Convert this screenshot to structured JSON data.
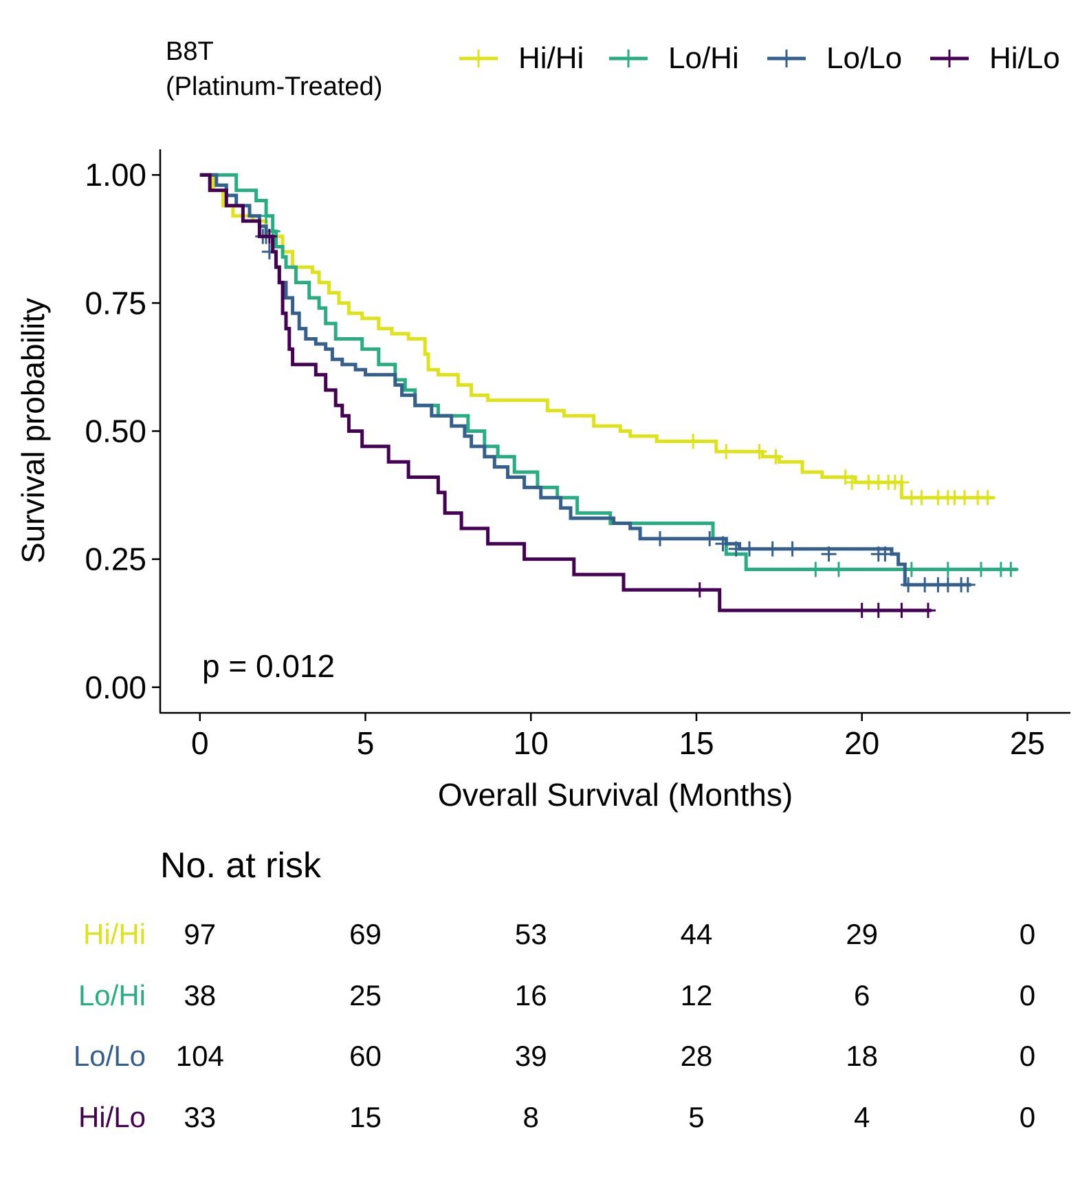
{
  "chart_data": {
    "type": "line",
    "legend": {
      "title_lines": [
        "B8T",
        "(Platinum-Treated)"
      ],
      "placement": "top"
    },
    "xlabel": "Overall Survival (Months)",
    "ylabel": "Survival probability",
    "xlim": [
      -1.2,
      26.3
    ],
    "ylim": [
      -0.05,
      1.05
    ],
    "x_ticks": [
      0,
      5,
      10,
      15,
      20,
      25
    ],
    "y_ticks": [
      0,
      0.25,
      0.5,
      0.75,
      1.0
    ],
    "x_tick_labels": [
      "0",
      "5",
      "10",
      "15",
      "20",
      "25"
    ],
    "y_tick_labels": [
      "0.00",
      "0.25",
      "0.50",
      "0.75",
      "1.00"
    ],
    "annotation": "p = 0.012",
    "annotation_pos": [
      0,
      0.04
    ],
    "series": [
      {
        "name": "Hi/Hi",
        "color": "#dde318",
        "steps": [
          [
            0,
            1.0
          ],
          [
            0.4,
            0.97
          ],
          [
            0.7,
            0.94
          ],
          [
            1.0,
            0.92
          ],
          [
            1.6,
            0.91
          ],
          [
            2.0,
            0.88
          ],
          [
            2.5,
            0.85
          ],
          [
            2.8,
            0.82
          ],
          [
            3.4,
            0.81
          ],
          [
            3.6,
            0.79
          ],
          [
            3.9,
            0.77
          ],
          [
            4.2,
            0.75
          ],
          [
            4.5,
            0.73
          ],
          [
            4.9,
            0.72
          ],
          [
            5.4,
            0.7
          ],
          [
            5.8,
            0.69
          ],
          [
            6.3,
            0.68
          ],
          [
            6.8,
            0.65
          ],
          [
            6.9,
            0.62
          ],
          [
            7.2,
            0.61
          ],
          [
            7.8,
            0.59
          ],
          [
            8.2,
            0.57
          ],
          [
            8.7,
            0.56
          ],
          [
            10.5,
            0.54
          ],
          [
            11.0,
            0.53
          ],
          [
            11.9,
            0.51
          ],
          [
            12.7,
            0.5
          ],
          [
            13.0,
            0.49
          ],
          [
            13.8,
            0.48
          ],
          [
            15.6,
            0.46
          ],
          [
            17.0,
            0.45
          ],
          [
            17.5,
            0.44
          ],
          [
            18.2,
            0.42
          ],
          [
            18.8,
            0.41
          ],
          [
            19.8,
            0.4
          ],
          [
            21.2,
            0.37
          ],
          [
            24.0,
            0.37
          ]
        ],
        "censors": [
          [
            14.9,
            0.48
          ],
          [
            15.9,
            0.46
          ],
          [
            16.9,
            0.46
          ],
          [
            17.4,
            0.45
          ],
          [
            19.5,
            0.41
          ],
          [
            19.7,
            0.4
          ],
          [
            20.2,
            0.4
          ],
          [
            20.5,
            0.4
          ],
          [
            20.8,
            0.4
          ],
          [
            21.0,
            0.4
          ],
          [
            21.2,
            0.4
          ],
          [
            21.5,
            0.37
          ],
          [
            21.8,
            0.37
          ],
          [
            22.3,
            0.37
          ],
          [
            22.6,
            0.37
          ],
          [
            22.8,
            0.37
          ],
          [
            23.1,
            0.37
          ],
          [
            23.5,
            0.37
          ],
          [
            23.8,
            0.37
          ]
        ]
      },
      {
        "name": "Lo/Hi",
        "color": "#27ad81",
        "steps": [
          [
            0,
            1.0
          ],
          [
            1.1,
            0.97
          ],
          [
            1.7,
            0.95
          ],
          [
            2.0,
            0.92
          ],
          [
            2.2,
            0.89
          ],
          [
            2.3,
            0.86
          ],
          [
            2.5,
            0.84
          ],
          [
            2.6,
            0.82
          ],
          [
            2.9,
            0.79
          ],
          [
            3.3,
            0.76
          ],
          [
            3.6,
            0.74
          ],
          [
            3.8,
            0.71
          ],
          [
            4.1,
            0.68
          ],
          [
            4.9,
            0.66
          ],
          [
            5.4,
            0.63
          ],
          [
            5.9,
            0.6
          ],
          [
            6.2,
            0.58
          ],
          [
            6.5,
            0.55
          ],
          [
            7.2,
            0.53
          ],
          [
            8.1,
            0.5
          ],
          [
            8.6,
            0.47
          ],
          [
            9.0,
            0.45
          ],
          [
            9.5,
            0.42
          ],
          [
            10.2,
            0.39
          ],
          [
            10.8,
            0.37
          ],
          [
            11.4,
            0.34
          ],
          [
            12.4,
            0.32
          ],
          [
            15.5,
            0.29
          ],
          [
            15.9,
            0.26
          ],
          [
            16.5,
            0.23
          ],
          [
            24.7,
            0.23
          ]
        ],
        "censors": [
          [
            2.0,
            0.92
          ],
          [
            2.2,
            0.89
          ],
          [
            18.6,
            0.23
          ],
          [
            19.3,
            0.23
          ],
          [
            21.5,
            0.23
          ],
          [
            22.6,
            0.23
          ],
          [
            23.6,
            0.23
          ],
          [
            24.2,
            0.23
          ],
          [
            24.5,
            0.23
          ]
        ]
      },
      {
        "name": "Lo/Lo",
        "color": "#355f8d",
        "steps": [
          [
            0,
            1.0
          ],
          [
            0.5,
            0.98
          ],
          [
            0.8,
            0.96
          ],
          [
            1.1,
            0.94
          ],
          [
            1.5,
            0.92
          ],
          [
            1.8,
            0.9
          ],
          [
            2.0,
            0.88
          ],
          [
            2.2,
            0.85
          ],
          [
            2.3,
            0.82
          ],
          [
            2.4,
            0.79
          ],
          [
            2.6,
            0.76
          ],
          [
            2.8,
            0.73
          ],
          [
            3.0,
            0.7
          ],
          [
            3.2,
            0.68
          ],
          [
            3.5,
            0.67
          ],
          [
            3.8,
            0.66
          ],
          [
            4.0,
            0.64
          ],
          [
            4.3,
            0.63
          ],
          [
            4.7,
            0.62
          ],
          [
            5.0,
            0.61
          ],
          [
            5.9,
            0.59
          ],
          [
            6.1,
            0.57
          ],
          [
            6.5,
            0.55
          ],
          [
            7.0,
            0.53
          ],
          [
            7.6,
            0.51
          ],
          [
            8.0,
            0.49
          ],
          [
            8.2,
            0.47
          ],
          [
            8.6,
            0.45
          ],
          [
            8.9,
            0.43
          ],
          [
            9.3,
            0.41
          ],
          [
            9.8,
            0.39
          ],
          [
            10.3,
            0.37
          ],
          [
            10.9,
            0.35
          ],
          [
            11.2,
            0.33
          ],
          [
            12.5,
            0.32
          ],
          [
            13.0,
            0.31
          ],
          [
            13.3,
            0.29
          ],
          [
            15.9,
            0.28
          ],
          [
            16.3,
            0.27
          ],
          [
            20.9,
            0.26
          ],
          [
            21.1,
            0.24
          ],
          [
            21.3,
            0.2
          ],
          [
            23.3,
            0.2
          ]
        ],
        "censors": [
          [
            1.9,
            0.88
          ],
          [
            2.0,
            0.88
          ],
          [
            2.1,
            0.85
          ],
          [
            13.9,
            0.29
          ],
          [
            15.4,
            0.29
          ],
          [
            15.8,
            0.28
          ],
          [
            16.2,
            0.27
          ],
          [
            16.6,
            0.27
          ],
          [
            17.3,
            0.27
          ],
          [
            17.9,
            0.27
          ],
          [
            19.0,
            0.26
          ],
          [
            20.5,
            0.26
          ],
          [
            20.7,
            0.26
          ],
          [
            21.4,
            0.2
          ],
          [
            21.9,
            0.2
          ],
          [
            22.3,
            0.2
          ],
          [
            22.6,
            0.2
          ],
          [
            23.0,
            0.2
          ],
          [
            23.2,
            0.2
          ]
        ]
      },
      {
        "name": "Hi/Lo",
        "color": "#440154",
        "steps": [
          [
            0,
            1.0
          ],
          [
            0.3,
            0.97
          ],
          [
            0.8,
            0.94
          ],
          [
            1.3,
            0.91
          ],
          [
            1.8,
            0.88
          ],
          [
            2.2,
            0.85
          ],
          [
            2.3,
            0.82
          ],
          [
            2.4,
            0.79
          ],
          [
            2.5,
            0.76
          ],
          [
            2.5,
            0.73
          ],
          [
            2.6,
            0.7
          ],
          [
            2.7,
            0.66
          ],
          [
            2.8,
            0.63
          ],
          [
            3.5,
            0.61
          ],
          [
            3.8,
            0.58
          ],
          [
            4.1,
            0.55
          ],
          [
            4.3,
            0.53
          ],
          [
            4.5,
            0.5
          ],
          [
            4.9,
            0.47
          ],
          [
            5.7,
            0.44
          ],
          [
            6.3,
            0.41
          ],
          [
            7.2,
            0.38
          ],
          [
            7.4,
            0.34
          ],
          [
            7.9,
            0.31
          ],
          [
            8.7,
            0.28
          ],
          [
            9.8,
            0.25
          ],
          [
            11.3,
            0.22
          ],
          [
            12.8,
            0.19
          ],
          [
            15.7,
            0.15
          ],
          [
            22.1,
            0.15
          ]
        ],
        "censors": [
          [
            2.1,
            0.88
          ],
          [
            15.1,
            0.19
          ],
          [
            20.0,
            0.15
          ],
          [
            20.5,
            0.15
          ],
          [
            21.2,
            0.15
          ],
          [
            22.0,
            0.15
          ]
        ]
      }
    ],
    "risk_table": {
      "title": "No. at risk",
      "times": [
        0,
        5,
        10,
        15,
        20,
        25
      ],
      "rows": [
        {
          "name": "Hi/Hi",
          "color": "#dde318",
          "values": [
            "97",
            "69",
            "53",
            "44",
            "29",
            "0"
          ]
        },
        {
          "name": "Lo/Hi",
          "color": "#27ad81",
          "values": [
            "38",
            "25",
            "16",
            "12",
            "6",
            "0"
          ]
        },
        {
          "name": "Lo/Lo",
          "color": "#355f8d",
          "values": [
            "104",
            "60",
            "39",
            "28",
            "18",
            "0"
          ]
        },
        {
          "name": "Hi/Lo",
          "color": "#440154",
          "values": [
            "33",
            "15",
            "8",
            "5",
            "4",
            "0"
          ]
        }
      ]
    }
  }
}
